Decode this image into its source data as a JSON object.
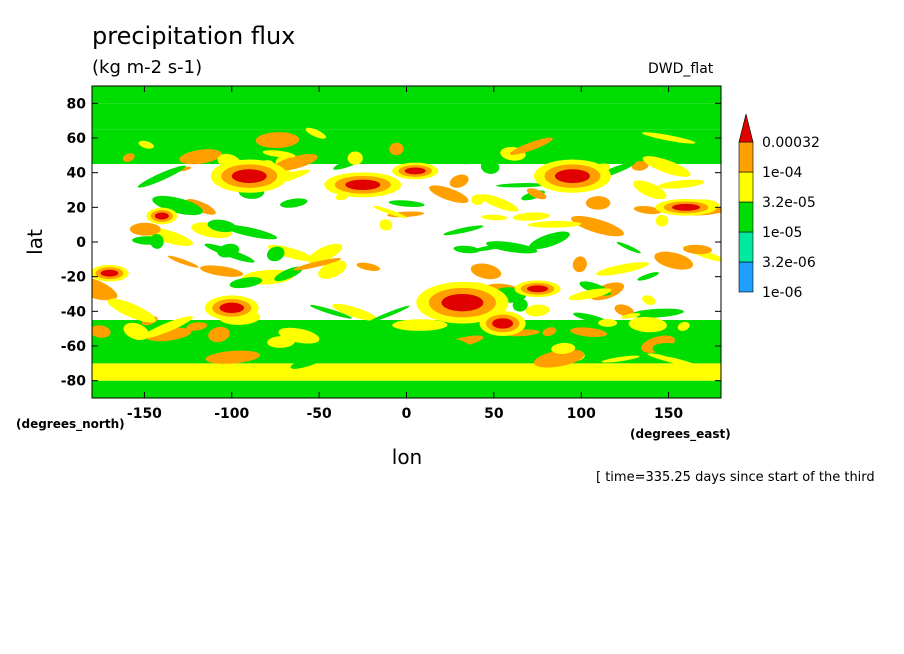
{
  "chart_data": {
    "type": "heatmap",
    "title": "precipitation flux",
    "units": "(kg m-2 s-1)",
    "run_name": "DWD_flat",
    "xlabel": "lon",
    "ylabel": "lat",
    "x_units": "(degrees_east)",
    "y_units": "(degrees_north)",
    "xlim": [
      -180,
      180
    ],
    "ylim": [
      -90,
      90
    ],
    "x_ticks": [
      -150,
      -100,
      -50,
      0,
      50,
      100,
      150
    ],
    "y_ticks": [
      80,
      60,
      40,
      20,
      0,
      -20,
      -40,
      -60,
      -80
    ],
    "colorbar": {
      "levels": [
        "1e-06",
        "3.2e-06",
        "1e-05",
        "3.2e-05",
        "1e-04",
        "0.00032"
      ],
      "colors": [
        "#1fa0ff",
        "#00e9a0",
        "#00dd00",
        "#ffff00",
        "#ffa000",
        "#e00000"
      ]
    },
    "bands": [
      {
        "lat": [
          -90,
          -80
        ],
        "level": 2
      },
      {
        "lat": [
          -80,
          -70
        ],
        "level": 3
      },
      {
        "lat": [
          -70,
          -58
        ],
        "level": 2
      },
      {
        "lat": [
          -58,
          -45
        ],
        "level": 2
      },
      {
        "lat": [
          45,
          65
        ],
        "level": 2
      },
      {
        "lat": [
          65,
          80
        ],
        "level": 2
      },
      {
        "lat": [
          80,
          90
        ],
        "level": 2
      }
    ],
    "features": [
      {
        "lon": -90,
        "lat": 38,
        "rlon": 10,
        "rlat": 4,
        "level": 5
      },
      {
        "lon": -100,
        "lat": -38,
        "rlon": 7,
        "rlat": 3,
        "level": 5
      },
      {
        "lon": -25,
        "lat": 33,
        "rlon": 10,
        "rlat": 3,
        "level": 5
      },
      {
        "lon": 5,
        "lat": 41,
        "rlon": 6,
        "rlat": 2,
        "level": 5
      },
      {
        "lon": 95,
        "lat": 38,
        "rlon": 10,
        "rlat": 4,
        "level": 5
      },
      {
        "lon": 32,
        "lat": -35,
        "rlon": 12,
        "rlat": 5,
        "level": 5
      },
      {
        "lon": 55,
        "lat": -47,
        "rlon": 6,
        "rlat": 3,
        "level": 5
      },
      {
        "lon": -170,
        "lat": -18,
        "rlon": 5,
        "rlat": 2,
        "level": 5
      },
      {
        "lon": -140,
        "lat": 15,
        "rlon": 4,
        "rlat": 2,
        "level": 5
      },
      {
        "lon": 75,
        "lat": -27,
        "rlon": 6,
        "rlat": 2,
        "level": 5
      },
      {
        "lon": 160,
        "lat": 20,
        "rlon": 8,
        "rlat": 2,
        "level": 5
      }
    ],
    "time_note": "[ time=335.25 days since start of the third"
  }
}
